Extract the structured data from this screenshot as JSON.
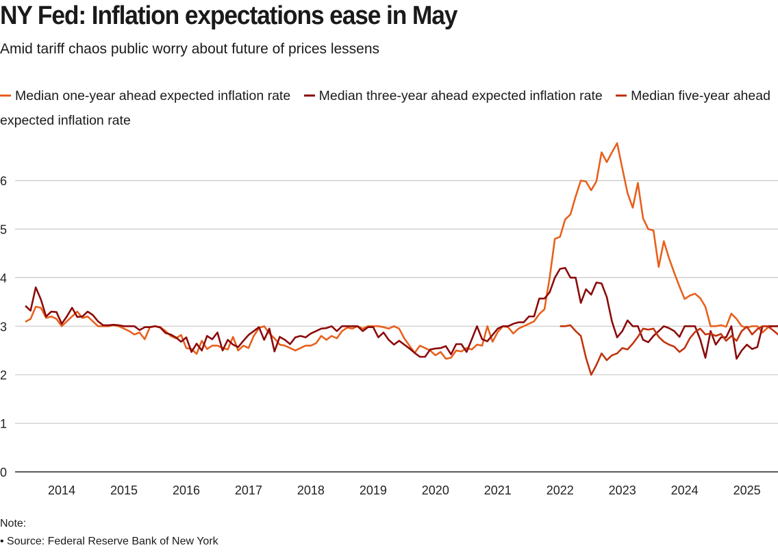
{
  "title": "NY Fed: Inflation expectations ease in May",
  "subtitle": "Amid tariff chaos public worry about future of prices lessens",
  "note_label": "Note:",
  "source": "• Source: Federal Reserve Bank of New York",
  "colors": {
    "one_year": "#e8601c",
    "three_year": "#8b0a0a",
    "five_year": "#c0340e",
    "grid": "#c8c8c8",
    "axis": "#222222"
  },
  "chart_data": {
    "type": "line",
    "title": "NY Fed: Inflation expectations ease in May",
    "subtitle": "Amid tariff chaos public worry about future of prices lessens",
    "xlabel": "",
    "ylabel": "",
    "ylim": [
      0,
      7
    ],
    "yticks": [
      0,
      1,
      2,
      3,
      4,
      5,
      6
    ],
    "x_start": "2013-06",
    "x_end": "2025-05",
    "frequency": "monthly",
    "xtick_labels": [
      "2014",
      "2015",
      "2016",
      "2017",
      "2018",
      "2019",
      "2020",
      "2021",
      "2022",
      "2023",
      "2024",
      "2025"
    ],
    "grid": true,
    "legend_position": "top",
    "series": [
      {
        "name": "Median one-year ahead expected inflation rate",
        "key": "one_year",
        "start": "2013-06",
        "values": [
          3.09,
          3.15,
          3.4,
          3.38,
          3.17,
          3.2,
          3.15,
          3.0,
          3.1,
          3.2,
          3.3,
          3.17,
          3.2,
          3.1,
          3.0,
          3.0,
          3.0,
          3.02,
          3.0,
          2.95,
          2.9,
          2.83,
          2.87,
          2.73,
          2.98,
          3.0,
          2.98,
          2.9,
          2.8,
          2.75,
          2.82,
          2.55,
          2.53,
          2.43,
          2.7,
          2.53,
          2.6,
          2.6,
          2.55,
          2.52,
          2.78,
          2.5,
          2.6,
          2.55,
          2.8,
          2.96,
          3.0,
          2.85,
          2.75,
          2.62,
          2.6,
          2.55,
          2.5,
          2.55,
          2.6,
          2.6,
          2.65,
          2.8,
          2.72,
          2.8,
          2.75,
          2.9,
          2.97,
          2.95,
          3.0,
          2.95,
          3.0,
          3.0,
          3.0,
          2.98,
          2.95,
          3.0,
          2.95,
          2.75,
          2.6,
          2.45,
          2.6,
          2.55,
          2.5,
          2.4,
          2.47,
          2.33,
          2.35,
          2.5,
          2.48,
          2.55,
          2.52,
          2.62,
          2.6,
          3.0,
          2.68,
          2.88,
          3.0,
          2.98,
          2.85,
          2.95,
          3.0,
          3.05,
          3.1,
          3.25,
          3.35,
          4.0,
          4.8,
          4.84,
          5.2,
          5.3,
          5.67,
          6.0,
          5.98,
          5.8,
          5.98,
          6.58,
          6.38,
          6.58,
          6.77,
          6.25,
          5.74,
          5.44,
          5.95,
          5.22,
          5.0,
          4.97,
          4.22,
          4.75,
          4.4,
          4.1,
          3.82,
          3.56,
          3.63,
          3.67,
          3.58,
          3.4,
          3.0,
          3.0,
          3.02,
          2.99,
          3.26,
          3.15,
          3.0,
          2.97,
          3.0,
          3.0,
          2.87,
          2.97,
          3.0,
          3.0,
          3.0,
          3.15,
          3.6,
          3.63,
          3.2
        ]
      },
      {
        "name": "Median three-year ahead expected inflation rate",
        "key": "three_year",
        "start": "2013-06",
        "values": [
          3.42,
          3.32,
          3.8,
          3.55,
          3.2,
          3.3,
          3.29,
          3.05,
          3.2,
          3.38,
          3.19,
          3.2,
          3.3,
          3.23,
          3.1,
          3.02,
          3.02,
          3.03,
          3.02,
          3.0,
          3.0,
          3.0,
          2.92,
          2.98,
          2.98,
          3.0,
          2.97,
          2.86,
          2.83,
          2.77,
          2.68,
          2.77,
          2.47,
          2.64,
          2.5,
          2.8,
          2.73,
          2.87,
          2.5,
          2.72,
          2.62,
          2.57,
          2.7,
          2.82,
          2.9,
          2.98,
          2.72,
          2.95,
          2.48,
          2.78,
          2.72,
          2.63,
          2.77,
          2.8,
          2.77,
          2.85,
          2.9,
          2.95,
          2.96,
          3.0,
          2.9,
          3.0,
          3.0,
          3.0,
          3.0,
          2.9,
          2.98,
          2.98,
          2.77,
          2.87,
          2.72,
          2.62,
          2.7,
          2.62,
          2.54,
          2.45,
          2.37,
          2.37,
          2.52,
          2.54,
          2.55,
          2.59,
          2.42,
          2.63,
          2.63,
          2.47,
          2.73,
          3.0,
          2.73,
          2.69,
          2.82,
          2.95,
          3.0,
          3.0,
          3.05,
          3.08,
          3.08,
          3.2,
          3.2,
          3.57,
          3.57,
          3.7,
          4.0,
          4.18,
          4.2,
          4.0,
          4.0,
          3.48,
          3.76,
          3.65,
          3.9,
          3.88,
          3.6,
          3.1,
          2.77,
          2.9,
          3.12,
          3.0,
          3.0,
          2.72,
          2.67,
          2.8,
          2.9,
          3.0,
          2.96,
          2.9,
          2.78,
          3.0,
          3.0,
          3.0,
          2.73,
          2.35,
          2.9,
          2.62,
          2.77,
          2.77,
          3.0,
          2.33,
          2.5,
          2.62,
          2.53,
          2.57,
          3.0,
          3.0,
          3.0,
          3.0,
          3.18,
          3.0
        ]
      },
      {
        "name": "Median five-year ahead expected inflation rate",
        "key": "five_year",
        "start": "2022-01",
        "values": [
          3.0,
          3.0,
          3.02,
          2.9,
          2.8,
          2.35,
          2.0,
          2.2,
          2.44,
          2.3,
          2.4,
          2.44,
          2.55,
          2.52,
          2.64,
          2.78,
          2.95,
          2.93,
          2.95,
          2.78,
          2.68,
          2.62,
          2.58,
          2.47,
          2.55,
          2.75,
          2.88,
          2.95,
          2.83,
          2.85,
          2.8,
          2.84,
          2.7,
          2.8,
          2.7,
          2.9,
          2.99,
          2.83,
          2.94,
          3.0,
          3.0,
          2.92,
          2.83,
          2.72,
          2.62
        ]
      }
    ]
  }
}
